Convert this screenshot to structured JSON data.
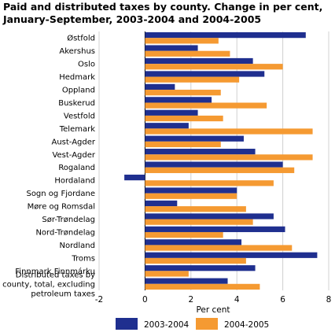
{
  "chart_data": {
    "type": "bar",
    "orientation": "horizontal",
    "title": "Paid and distributed taxes by county. Change in per cent, January-September, 2003-2004 and 2004-2005",
    "xlabel": "Per cent",
    "ylabel": "",
    "xlim": [
      -2,
      8
    ],
    "xticks": [
      -2,
      0,
      2,
      4,
      6,
      8
    ],
    "grid": true,
    "legend_position": "bottom",
    "categories": [
      "Østfold",
      "Akershus",
      "Oslo",
      "Hedmark",
      "Oppland",
      "Buskerud",
      "Vestfold",
      "Telemark",
      "Aust-Agder",
      "Vest-Agder",
      "Rogaland",
      "Hordaland",
      "Sogn og Fjordane",
      "Møre og Romsdal",
      "Sør-Trøndelag",
      "Nord-Trøndelag",
      "Nordland",
      "Troms",
      "Finnmark Finnmárku",
      "Distributed taxes by county, total, excluding petroleum taxes"
    ],
    "category_lines": [
      [
        "Østfold"
      ],
      [
        "Akershus"
      ],
      [
        "Oslo"
      ],
      [
        "Hedmark"
      ],
      [
        "Oppland"
      ],
      [
        "Buskerud"
      ],
      [
        "Vestfold"
      ],
      [
        "Telemark"
      ],
      [
        "Aust-Agder"
      ],
      [
        "Vest-Agder"
      ],
      [
        "Rogaland"
      ],
      [
        "Hordaland"
      ],
      [
        "Sogn og Fjordane"
      ],
      [
        "Møre og Romsdal"
      ],
      [
        "Sør-Trøndelag"
      ],
      [
        "Nord-Trøndelag"
      ],
      [
        "Nordland"
      ],
      [
        "Troms"
      ],
      [
        "Finnmark Finnmárku"
      ],
      [
        "Distributed taxes by",
        "county, total, excluding",
        "petroleum taxes"
      ]
    ],
    "series": [
      {
        "name": "2003-2004",
        "color": "#1f2f8f",
        "values": [
          7.0,
          2.3,
          4.7,
          5.2,
          1.3,
          2.9,
          2.3,
          1.9,
          4.3,
          4.8,
          6.0,
          -0.9,
          4.0,
          1.4,
          5.6,
          6.1,
          4.2,
          7.5,
          4.8,
          3.6
        ]
      },
      {
        "name": "2004-2005",
        "color": "#f59a32",
        "values": [
          3.2,
          3.7,
          6.0,
          4.1,
          3.3,
          5.3,
          3.4,
          7.3,
          3.3,
          7.3,
          6.5,
          5.6,
          4.0,
          4.4,
          4.7,
          3.4,
          6.4,
          4.4,
          1.9,
          5.0
        ]
      }
    ]
  }
}
